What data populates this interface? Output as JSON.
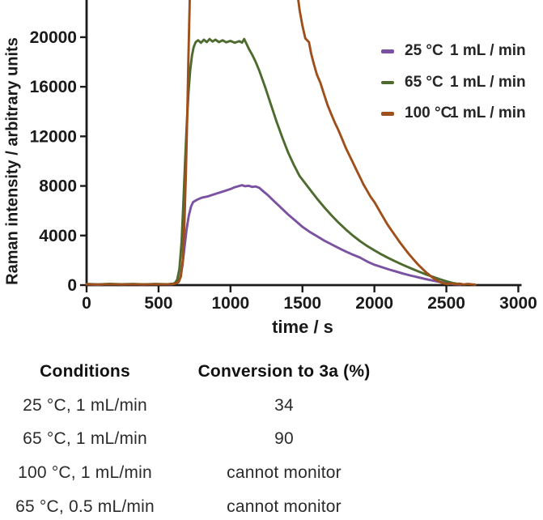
{
  "chart_data": {
    "type": "line",
    "title": "",
    "xlabel": "time / s",
    "ylabel": "Raman intensity / arbitrary units",
    "xlim": [
      0,
      3000
    ],
    "ylim": [
      0,
      23000
    ],
    "x_ticks": [
      0,
      500,
      1000,
      1500,
      2000,
      2500,
      3000
    ],
    "y_ticks": [
      0,
      4000,
      8000,
      12000,
      16000,
      20000
    ],
    "grid": false,
    "legend_position": "top-right",
    "axis_color": "#1a1a1a",
    "note": "100 °C trace exceeds the visible axis range between ~730 s and ~1450 s (clipped at top of plot)",
    "series": [
      {
        "name": "25 °C",
        "flow": "1 mL / min",
        "color": "#7B52A1",
        "points": [
          [
            0,
            60
          ],
          [
            80,
            40
          ],
          [
            160,
            70
          ],
          [
            240,
            50
          ],
          [
            320,
            70
          ],
          [
            400,
            50
          ],
          [
            480,
            70
          ],
          [
            560,
            60
          ],
          [
            600,
            80
          ],
          [
            630,
            200
          ],
          [
            650,
            600
          ],
          [
            665,
            1500
          ],
          [
            680,
            3000
          ],
          [
            695,
            4500
          ],
          [
            710,
            5600
          ],
          [
            725,
            6300
          ],
          [
            740,
            6700
          ],
          [
            770,
            6900
          ],
          [
            800,
            7050
          ],
          [
            840,
            7150
          ],
          [
            880,
            7300
          ],
          [
            920,
            7450
          ],
          [
            960,
            7600
          ],
          [
            1000,
            7750
          ],
          [
            1030,
            7900
          ],
          [
            1060,
            8000
          ],
          [
            1080,
            8060
          ],
          [
            1100,
            7980
          ],
          [
            1125,
            8020
          ],
          [
            1150,
            7920
          ],
          [
            1175,
            7960
          ],
          [
            1200,
            7850
          ],
          [
            1230,
            7550
          ],
          [
            1260,
            7250
          ],
          [
            1300,
            6800
          ],
          [
            1350,
            6250
          ],
          [
            1400,
            5700
          ],
          [
            1450,
            5200
          ],
          [
            1500,
            4700
          ],
          [
            1550,
            4300
          ],
          [
            1600,
            3950
          ],
          [
            1650,
            3600
          ],
          [
            1700,
            3300
          ],
          [
            1750,
            3000
          ],
          [
            1800,
            2720
          ],
          [
            1850,
            2460
          ],
          [
            1900,
            2220
          ],
          [
            1950,
            1900
          ],
          [
            2000,
            1640
          ],
          [
            2050,
            1450
          ],
          [
            2100,
            1270
          ],
          [
            2150,
            1100
          ],
          [
            2200,
            930
          ],
          [
            2250,
            780
          ],
          [
            2300,
            640
          ],
          [
            2350,
            500
          ],
          [
            2400,
            380
          ],
          [
            2450,
            260
          ],
          [
            2500,
            160
          ],
          [
            2550,
            80
          ],
          [
            2600,
            40
          ]
        ]
      },
      {
        "name": "65 °C",
        "flow": "1 mL / min",
        "color": "#4D6B2E",
        "points": [
          [
            0,
            90
          ],
          [
            80,
            60
          ],
          [
            160,
            95
          ],
          [
            240,
            65
          ],
          [
            320,
            90
          ],
          [
            400,
            60
          ],
          [
            480,
            90
          ],
          [
            560,
            70
          ],
          [
            600,
            110
          ],
          [
            615,
            180
          ],
          [
            630,
            450
          ],
          [
            645,
            1300
          ],
          [
            660,
            3500
          ],
          [
            672,
            6500
          ],
          [
            684,
            9800
          ],
          [
            696,
            13000
          ],
          [
            708,
            15500
          ],
          [
            720,
            17300
          ],
          [
            732,
            18500
          ],
          [
            744,
            19200
          ],
          [
            758,
            19600
          ],
          [
            775,
            19750
          ],
          [
            795,
            19550
          ],
          [
            815,
            19800
          ],
          [
            835,
            19600
          ],
          [
            855,
            19850
          ],
          [
            875,
            19650
          ],
          [
            895,
            19800
          ],
          [
            920,
            19600
          ],
          [
            945,
            19750
          ],
          [
            970,
            19580
          ],
          [
            1000,
            19700
          ],
          [
            1030,
            19550
          ],
          [
            1060,
            19680
          ],
          [
            1080,
            19560
          ],
          [
            1095,
            19850
          ],
          [
            1110,
            19500
          ],
          [
            1130,
            19000
          ],
          [
            1150,
            18600
          ],
          [
            1175,
            18000
          ],
          [
            1200,
            17300
          ],
          [
            1240,
            16000
          ],
          [
            1280,
            14600
          ],
          [
            1320,
            13200
          ],
          [
            1360,
            11900
          ],
          [
            1400,
            10700
          ],
          [
            1440,
            9700
          ],
          [
            1480,
            8800
          ],
          [
            1520,
            8200
          ],
          [
            1560,
            7600
          ],
          [
            1600,
            7000
          ],
          [
            1650,
            6300
          ],
          [
            1700,
            5650
          ],
          [
            1750,
            5050
          ],
          [
            1800,
            4500
          ],
          [
            1850,
            4000
          ],
          [
            1900,
            3550
          ],
          [
            1950,
            3150
          ],
          [
            2000,
            2800
          ],
          [
            2050,
            2470
          ],
          [
            2100,
            2170
          ],
          [
            2150,
            1890
          ],
          [
            2200,
            1620
          ],
          [
            2250,
            1370
          ],
          [
            2300,
            1130
          ],
          [
            2350,
            900
          ],
          [
            2400,
            690
          ],
          [
            2450,
            490
          ],
          [
            2500,
            310
          ],
          [
            2550,
            160
          ],
          [
            2600,
            60
          ]
        ]
      },
      {
        "name": "100 °C",
        "flow": "1 mL / min",
        "color": "#9E4F1A",
        "points": [
          [
            0,
            70
          ],
          [
            80,
            45
          ],
          [
            160,
            80
          ],
          [
            240,
            55
          ],
          [
            320,
            75
          ],
          [
            400,
            55
          ],
          [
            480,
            80
          ],
          [
            560,
            60
          ],
          [
            600,
            90
          ],
          [
            620,
            130
          ],
          [
            640,
            250
          ],
          [
            655,
            700
          ],
          [
            668,
            2000
          ],
          [
            680,
            5000
          ],
          [
            690,
            9000
          ],
          [
            700,
            14000
          ],
          [
            708,
            18500
          ],
          [
            716,
            22500
          ],
          [
            722,
            26000
          ],
          [
            1448,
            26000
          ],
          [
            1462,
            23800
          ],
          [
            1480,
            22200
          ],
          [
            1500,
            20900
          ],
          [
            1520,
            19900
          ],
          [
            1545,
            19600
          ],
          [
            1560,
            18700
          ],
          [
            1580,
            17800
          ],
          [
            1600,
            17000
          ],
          [
            1625,
            16300
          ],
          [
            1650,
            15400
          ],
          [
            1675,
            14500
          ],
          [
            1700,
            13800
          ],
          [
            1725,
            13100
          ],
          [
            1750,
            12500
          ],
          [
            1775,
            11800
          ],
          [
            1800,
            11100
          ],
          [
            1825,
            10500
          ],
          [
            1850,
            9900
          ],
          [
            1875,
            9300
          ],
          [
            1900,
            8700
          ],
          [
            1925,
            8100
          ],
          [
            1950,
            7600
          ],
          [
            1975,
            7100
          ],
          [
            2000,
            6700
          ],
          [
            2030,
            6100
          ],
          [
            2060,
            5500
          ],
          [
            2090,
            4900
          ],
          [
            2120,
            4400
          ],
          [
            2150,
            3900
          ],
          [
            2180,
            3400
          ],
          [
            2210,
            2950
          ],
          [
            2240,
            2500
          ],
          [
            2270,
            2100
          ],
          [
            2300,
            1700
          ],
          [
            2330,
            1350
          ],
          [
            2360,
            1020
          ],
          [
            2390,
            730
          ],
          [
            2420,
            480
          ],
          [
            2450,
            280
          ],
          [
            2480,
            140
          ],
          [
            2510,
            80
          ],
          [
            2540,
            150
          ],
          [
            2560,
            60
          ],
          [
            2590,
            120
          ],
          [
            2620,
            50
          ],
          [
            2650,
            90
          ],
          [
            2700,
            40
          ]
        ]
      }
    ]
  },
  "table": {
    "headers": [
      "Conditions",
      "Conversion to 3a (%)"
    ],
    "rows": [
      [
        "25 °C, 1 mL/min",
        "34"
      ],
      [
        "65 °C, 1 mL/min",
        "90"
      ],
      [
        "100 °C, 1 mL/min",
        "cannot monitor"
      ],
      [
        "65 °C, 0.5 mL/min",
        "cannot monitor"
      ]
    ]
  }
}
